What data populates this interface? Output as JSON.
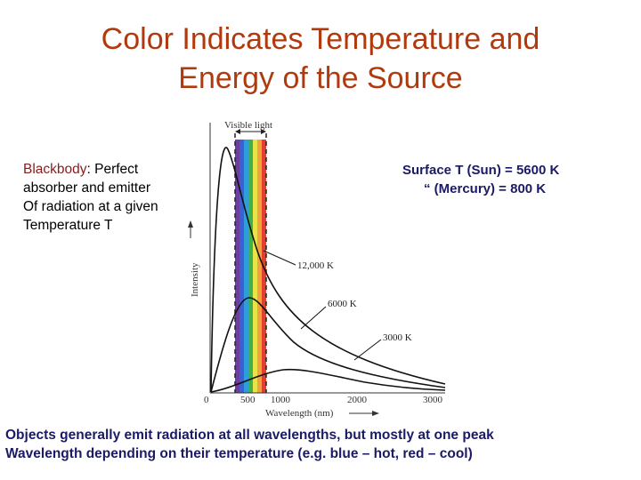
{
  "title": {
    "line1": "Color Indicates Temperature and",
    "line2": "Energy of the Source"
  },
  "left_text": {
    "term": "Blackbody",
    "rest": ": Perfect",
    "line2": "absorber and emitter",
    "line3": "Of radiation at a given",
    "line4": "Temperature T"
  },
  "right_text": {
    "line1": "Surface T (Sun)  = 5600 K",
    "line2": "“    (Mercury) = 800 K"
  },
  "bottom_text": {
    "line1": "Objects generally emit radiation at all wavelengths, but mostly at one peak",
    "line2": "Wavelength depending on their temperature (e.g. blue – hot, red – cool)"
  },
  "figure": {
    "visible_label": "Visible light",
    "y_axis_label": "Intensity",
    "x_axis_label": "Wavelength (nm)",
    "x_ticks": [
      "0",
      "500",
      "1000",
      "2000",
      "3000"
    ],
    "curve_labels": [
      "12,000 K",
      "6000 K",
      "3000 K"
    ],
    "spectrum_colors": [
      "#6a3fa0",
      "#3b5fd6",
      "#2f9ed8",
      "#3fb04a",
      "#e9e34a",
      "#f2a23a",
      "#e2402f"
    ]
  }
}
